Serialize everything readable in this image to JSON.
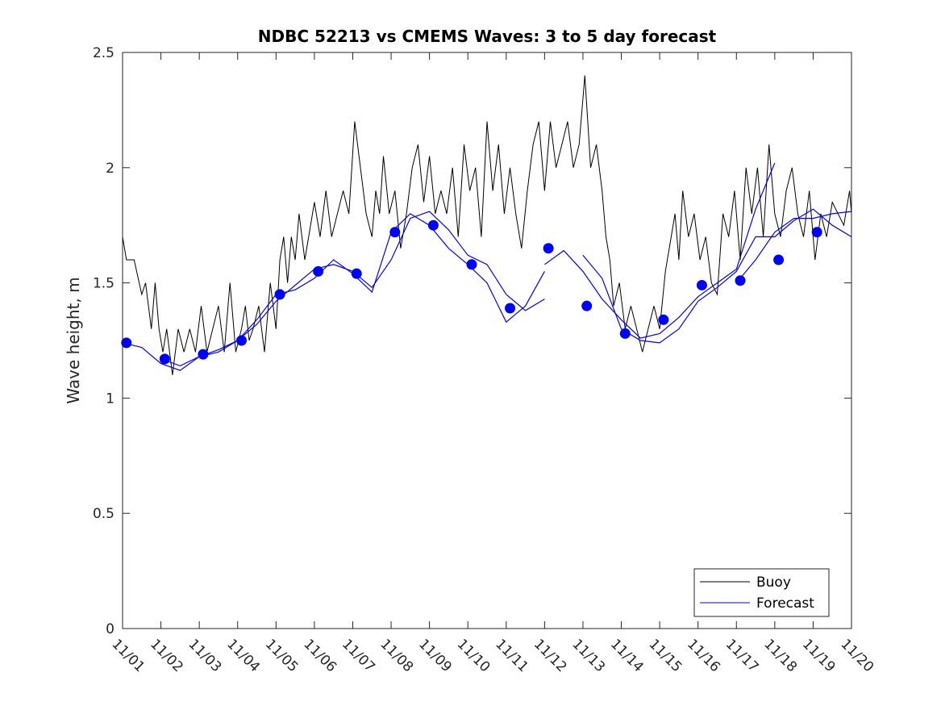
{
  "chart_data": {
    "type": "line",
    "title": "NDBC 52213 vs CMEMS Waves: 3 to 5 day forecast",
    "xlabel": "",
    "ylabel": "Wave height, m",
    "xlim": [
      0,
      19
    ],
    "ylim": [
      0,
      2.5
    ],
    "yticks": [
      0,
      0.5,
      1,
      1.5,
      2,
      2.5
    ],
    "ytick_labels": [
      "0",
      "0.5",
      "1",
      "1.5",
      "2",
      "2.5"
    ],
    "xtick_labels": [
      "11/01",
      "11/02",
      "11/03",
      "11/04",
      "11/05",
      "11/06",
      "11/07",
      "11/08",
      "11/09",
      "11/10",
      "11/11",
      "11/12",
      "11/13",
      "11/14",
      "11/15",
      "11/16",
      "11/17",
      "11/18",
      "11/19",
      "11/20"
    ],
    "legend": {
      "position": "bottom-right",
      "entries": [
        "Buoy",
        "Forecast"
      ]
    },
    "colors": {
      "buoy": "#000000",
      "forecast": "#0000ff"
    },
    "series": [
      {
        "name": "Buoy",
        "x": [
          0,
          0.1,
          0.3,
          0.5,
          0.6,
          0.75,
          0.85,
          0.95,
          1.05,
          1.15,
          1.3,
          1.45,
          1.6,
          1.75,
          1.9,
          2.05,
          2.2,
          2.35,
          2.5,
          2.65,
          2.8,
          2.95,
          3.1,
          3.2,
          3.3,
          3.4,
          3.55,
          3.7,
          3.85,
          4.0,
          4.1,
          4.2,
          4.3,
          4.4,
          4.5,
          4.6,
          4.75,
          4.85,
          5.0,
          5.15,
          5.3,
          5.45,
          5.6,
          5.75,
          5.9,
          6.05,
          6.2,
          6.35,
          6.5,
          6.6,
          6.7,
          6.8,
          6.95,
          7.1,
          7.25,
          7.4,
          7.55,
          7.7,
          7.85,
          8.0,
          8.15,
          8.3,
          8.45,
          8.6,
          8.75,
          8.9,
          9.05,
          9.2,
          9.35,
          9.5,
          9.65,
          9.8,
          9.95,
          10.1,
          10.25,
          10.4,
          10.55,
          10.7,
          10.85,
          11.0,
          11.15,
          11.3,
          11.45,
          11.6,
          11.75,
          11.9,
          12.05,
          12.2,
          12.35,
          12.5,
          12.6,
          12.7,
          12.8,
          12.95,
          13.1,
          13.25,
          13.4,
          13.55,
          13.7,
          13.85,
          14.0,
          14.15,
          14.3,
          14.4,
          14.5,
          14.6,
          14.75,
          14.9,
          15.05,
          15.2,
          15.35,
          15.5,
          15.65,
          15.8,
          15.95,
          16.1,
          16.25,
          16.4,
          16.55,
          16.7,
          16.85,
          17.0,
          17.15,
          17.3,
          17.45,
          17.6,
          17.75,
          17.9,
          18.05,
          18.2,
          18.35,
          18.5,
          18.65,
          18.8,
          18.95,
          19.0
        ],
        "y": [
          1.7,
          1.6,
          1.6,
          1.45,
          1.5,
          1.3,
          1.5,
          1.3,
          1.2,
          1.3,
          1.1,
          1.3,
          1.2,
          1.3,
          1.2,
          1.4,
          1.2,
          1.3,
          1.4,
          1.2,
          1.5,
          1.2,
          1.3,
          1.4,
          1.25,
          1.3,
          1.4,
          1.2,
          1.5,
          1.3,
          1.6,
          1.7,
          1.5,
          1.7,
          1.6,
          1.8,
          1.6,
          1.7,
          1.85,
          1.7,
          1.9,
          1.7,
          1.8,
          1.9,
          1.8,
          2.2,
          2.0,
          1.8,
          1.7,
          1.9,
          1.8,
          2.05,
          1.8,
          1.9,
          1.65,
          1.8,
          2.0,
          2.1,
          1.85,
          2.05,
          1.8,
          1.9,
          1.8,
          2.0,
          1.7,
          2.1,
          1.9,
          2.0,
          1.7,
          2.2,
          1.9,
          2.1,
          1.8,
          2.0,
          1.8,
          1.65,
          1.9,
          2.1,
          2.2,
          1.9,
          2.2,
          2.0,
          2.1,
          2.2,
          2.0,
          2.1,
          2.4,
          2.0,
          2.1,
          1.9,
          1.7,
          1.6,
          1.4,
          1.5,
          1.3,
          1.4,
          1.3,
          1.2,
          1.3,
          1.4,
          1.3,
          1.55,
          1.7,
          1.8,
          1.6,
          1.9,
          1.7,
          1.8,
          1.6,
          1.7,
          1.5,
          1.45,
          1.8,
          1.7,
          1.9,
          1.6,
          2.0,
          1.8,
          2.0,
          1.7,
          2.1,
          1.8,
          1.7,
          1.9,
          2.0,
          1.8,
          1.7,
          1.9,
          1.6,
          1.8,
          1.7,
          1.85,
          1.8,
          1.75,
          1.9,
          1.8
        ]
      },
      {
        "name": "Forecast",
        "segments": [
          {
            "x": [
              0,
              0.5,
              1.0,
              1.5,
              2.0,
              2.5,
              3.0,
              3.5,
              4.0,
              4.5,
              5.0,
              5.5,
              6.0,
              6.5,
              7.0,
              7.5,
              8.0,
              8.5,
              9.0,
              9.5,
              10.0,
              10.5,
              11.0
            ],
            "y": [
              1.24,
              1.22,
              1.15,
              1.12,
              1.18,
              1.21,
              1.25,
              1.32,
              1.42,
              1.49,
              1.56,
              1.58,
              1.55,
              1.48,
              1.6,
              1.78,
              1.81,
              1.73,
              1.62,
              1.58,
              1.45,
              1.38,
              1.43
            ]
          },
          {
            "x": [
              1.0,
              1.5,
              2.0,
              2.5,
              3.0,
              3.5,
              4.0,
              4.5,
              5.0,
              5.5,
              6.0,
              6.5,
              7.0,
              7.5,
              8.0,
              8.5,
              9.0,
              9.5,
              10.0,
              10.5,
              11.0
            ],
            "y": [
              1.17,
              1.14,
              1.18,
              1.2,
              1.25,
              1.34,
              1.45,
              1.47,
              1.52,
              1.6,
              1.54,
              1.46,
              1.72,
              1.8,
              1.75,
              1.65,
              1.58,
              1.5,
              1.33,
              1.4,
              1.55
            ]
          },
          {
            "x": [
              11.0,
              11.5,
              12.0,
              12.5,
              13.0,
              13.5,
              14.0,
              14.5,
              15.0,
              15.5,
              16.0,
              16.5,
              17.0
            ],
            "y": [
              1.58,
              1.64,
              1.55,
              1.43,
              1.34,
              1.26,
              1.28,
              1.35,
              1.44,
              1.5,
              1.56,
              1.82,
              2.02
            ]
          },
          {
            "x": [
              12.0,
              12.5,
              13.0,
              13.5,
              14.0,
              14.5,
              15.0,
              15.5,
              16.0,
              16.5,
              17.0,
              17.5,
              18.0,
              18.5,
              19.0
            ],
            "y": [
              1.62,
              1.52,
              1.3,
              1.25,
              1.24,
              1.3,
              1.42,
              1.48,
              1.55,
              1.7,
              1.7,
              1.77,
              1.82,
              1.75,
              1.7
            ]
          },
          {
            "x": [
              16.0,
              16.5,
              17.0,
              17.5,
              18.0,
              18.5,
              19.0
            ],
            "y": [
              1.5,
              1.6,
              1.72,
              1.78,
              1.78,
              1.8,
              1.81
            ]
          }
        ],
        "markers": {
          "x": [
            0.1,
            1.1,
            2.1,
            3.1,
            4.1,
            5.1,
            6.1,
            7.1,
            8.1,
            9.1,
            10.1,
            11.1,
            12.1,
            13.1,
            14.1,
            15.1,
            16.1,
            17.1,
            18.1
          ],
          "y": [
            1.24,
            1.17,
            1.19,
            1.25,
            1.45,
            1.55,
            1.54,
            1.72,
            1.75,
            1.58,
            1.39,
            1.65,
            1.4,
            1.28,
            1.34,
            1.49,
            1.51,
            1.6,
            1.72
          ]
        }
      }
    ]
  }
}
